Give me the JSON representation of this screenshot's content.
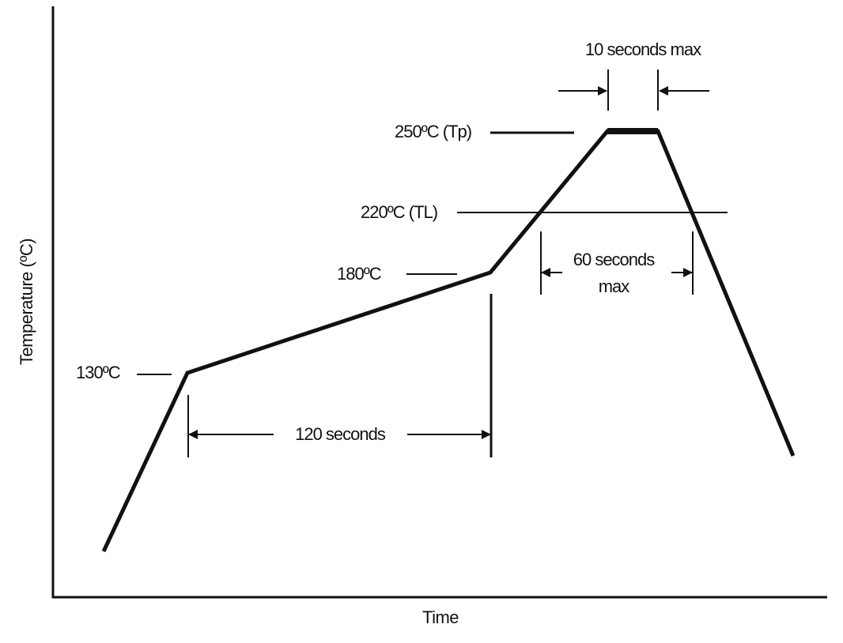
{
  "diagram": {
    "y_axis_label": "Temperature (ºC)",
    "x_axis_label": "Time",
    "temperature_marks": {
      "t130": "130ºC",
      "t180": "180ºC",
      "t220": "220ºC (TL)",
      "t250": "250ºC (Tp)"
    },
    "intervals": {
      "preheat": "120 seconds",
      "above_liquidus_line1": "60 seconds",
      "above_liquidus_line2": "max",
      "peak": "10 seconds max"
    }
  }
}
